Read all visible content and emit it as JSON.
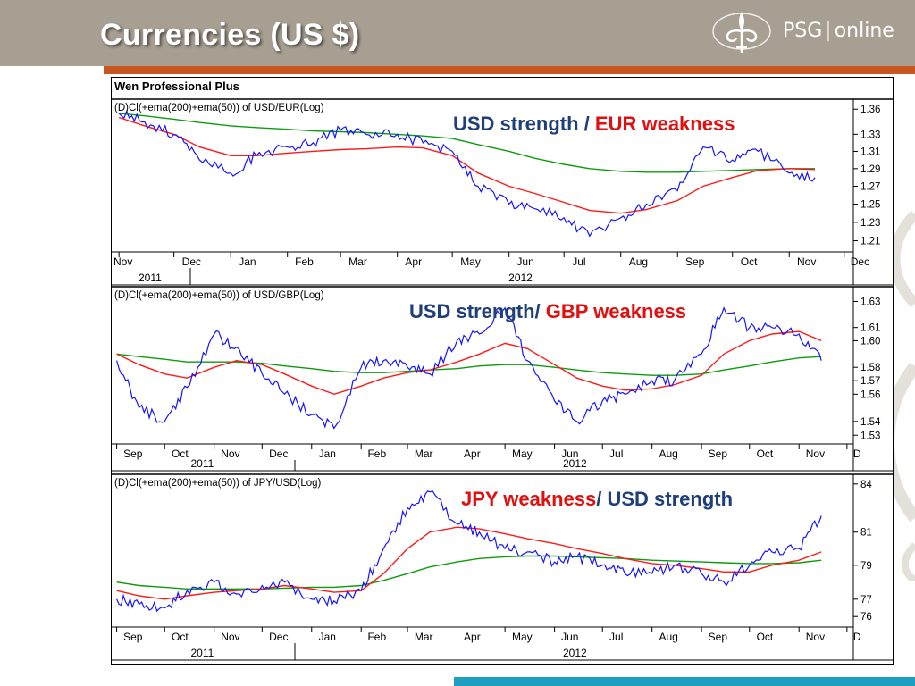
{
  "slide": {
    "title": "Currencies (US $)"
  },
  "logo": {
    "brand": "PSG",
    "suffix": "online"
  },
  "app": {
    "name": "Wen Professional Plus"
  },
  "colors": {
    "price": "#1515ff",
    "ema50": "#ff1a1a",
    "ema200": "#0e9a0e",
    "accent": "#c8561f",
    "header": "#a89f93",
    "highlight_blue": "#1f3f7a",
    "highlight_red": "#e01010"
  },
  "chart_data": [
    {
      "type": "line",
      "title": "(D)Cl(+ema(200)+ema(50)) of USD/EUR(Log)",
      "annotation": {
        "blue_part": "USD strength / ",
        "red_part": "EUR weakness"
      },
      "y_scale": "log",
      "ylim": [
        1.2,
        1.37
      ],
      "y_ticks": [
        "1.36",
        "1.33",
        "1.31",
        "1.29",
        "1.27",
        "1.25",
        "1.23",
        "1.21"
      ],
      "x_ticks": [
        "Nov",
        "Dec",
        "Jan",
        "Feb",
        "Mar",
        "Apr",
        "May",
        "Jun",
        "Jul",
        "Aug",
        "Sep",
        "Oct",
        "Nov",
        "Dec"
      ],
      "year_labels": [
        "2011",
        "2012"
      ],
      "x": [
        "2011-11-01",
        "2011-11-15",
        "2011-12-01",
        "2011-12-15",
        "2012-01-01",
        "2012-01-15",
        "2012-02-01",
        "2012-02-15",
        "2012-03-01",
        "2012-03-15",
        "2012-04-01",
        "2012-04-15",
        "2012-05-01",
        "2012-05-15",
        "2012-06-01",
        "2012-06-15",
        "2012-07-01",
        "2012-07-15",
        "2012-08-01",
        "2012-08-15",
        "2012-09-01",
        "2012-09-15",
        "2012-10-01",
        "2012-10-15",
        "2012-11-01",
        "2012-11-15"
      ],
      "series": [
        {
          "name": "USD/EUR",
          "values": [
            1.355,
            1.345,
            1.33,
            1.3,
            1.285,
            1.305,
            1.315,
            1.32,
            1.335,
            1.33,
            1.33,
            1.32,
            1.31,
            1.27,
            1.25,
            1.245,
            1.235,
            1.215,
            1.235,
            1.25,
            1.265,
            1.315,
            1.3,
            1.31,
            1.285,
            1.28
          ]
        },
        {
          "name": "EMA(50)",
          "values": [
            1.35,
            1.34,
            1.33,
            1.315,
            1.305,
            1.305,
            1.308,
            1.31,
            1.312,
            1.313,
            1.315,
            1.314,
            1.305,
            1.285,
            1.27,
            1.262,
            1.252,
            1.243,
            1.24,
            1.244,
            1.254,
            1.27,
            1.28,
            1.288,
            1.29,
            1.289
          ]
        },
        {
          "name": "EMA(200)",
          "values": [
            1.355,
            1.352,
            1.348,
            1.344,
            1.34,
            1.338,
            1.336,
            1.334,
            1.333,
            1.332,
            1.33,
            1.328,
            1.325,
            1.318,
            1.31,
            1.302,
            1.295,
            1.29,
            1.287,
            1.286,
            1.286,
            1.287,
            1.288,
            1.289,
            1.29,
            1.29
          ]
        }
      ]
    },
    {
      "type": "line",
      "title": "(D)Cl(+ema(200)+ema(50)) of USD/GBP(Log)",
      "annotation": {
        "blue_part": "USD strength/ ",
        "red_part": "GBP weakness"
      },
      "y_scale": "log",
      "ylim": [
        1.525,
        1.64
      ],
      "y_ticks": [
        "1.63",
        "1.61",
        "1.60",
        "1.58",
        "1.57",
        "1.56",
        "1.54",
        "1.53"
      ],
      "x_ticks": [
        "Sep",
        "Oct",
        "Nov",
        "Dec",
        "Jan",
        "Feb",
        "Mar",
        "Apr",
        "May",
        "Jun",
        "Jul",
        "Aug",
        "Sep",
        "Oct",
        "Nov",
        "D"
      ],
      "year_labels": [
        "2011",
        "2012"
      ],
      "x": [
        "2011-09-01",
        "2011-09-15",
        "2011-10-01",
        "2011-10-15",
        "2011-11-01",
        "2011-11-15",
        "2011-12-01",
        "2011-12-15",
        "2012-01-01",
        "2012-01-15",
        "2012-02-01",
        "2012-02-15",
        "2012-03-01",
        "2012-03-15",
        "2012-04-01",
        "2012-04-15",
        "2012-05-01",
        "2012-05-15",
        "2012-06-01",
        "2012-06-15",
        "2012-07-01",
        "2012-07-15",
        "2012-08-01",
        "2012-08-15",
        "2012-09-01",
        "2012-09-15",
        "2012-10-01",
        "2012-10-15",
        "2012-11-01",
        "2012-11-15"
      ],
      "series": [
        {
          "name": "USD/GBP",
          "values": [
            1.585,
            1.55,
            1.54,
            1.565,
            1.605,
            1.595,
            1.575,
            1.56,
            1.545,
            1.535,
            1.58,
            1.585,
            1.58,
            1.575,
            1.6,
            1.605,
            1.625,
            1.585,
            1.555,
            1.54,
            1.555,
            1.56,
            1.57,
            1.57,
            1.59,
            1.625,
            1.61,
            1.61,
            1.605,
            1.585
          ]
        },
        {
          "name": "EMA(50)",
          "values": [
            1.59,
            1.582,
            1.575,
            1.572,
            1.58,
            1.585,
            1.582,
            1.575,
            1.566,
            1.56,
            1.566,
            1.572,
            1.576,
            1.578,
            1.584,
            1.59,
            1.598,
            1.594,
            1.582,
            1.572,
            1.566,
            1.563,
            1.564,
            1.567,
            1.574,
            1.59,
            1.6,
            1.605,
            1.607,
            1.6
          ]
        },
        {
          "name": "EMA(200)",
          "values": [
            1.59,
            1.588,
            1.586,
            1.584,
            1.584,
            1.584,
            1.583,
            1.581,
            1.579,
            1.577,
            1.576,
            1.576,
            1.577,
            1.578,
            1.579,
            1.581,
            1.582,
            1.582,
            1.58,
            1.578,
            1.576,
            1.575,
            1.574,
            1.574,
            1.575,
            1.578,
            1.581,
            1.584,
            1.587,
            1.588
          ]
        }
      ]
    },
    {
      "type": "line",
      "title": "(D)Cl(+ema(200)+ema(50)) of JPY/USD(Log)",
      "annotation": {
        "red_part": "JPY weakness",
        "blue_part": "/ USD strength"
      },
      "y_scale": "log",
      "ylim": [
        75.5,
        84.5
      ],
      "y_ticks": [
        "84",
        "81",
        "79",
        "77",
        "76"
      ],
      "x_ticks": [
        "Sep",
        "Oct",
        "Nov",
        "Dec",
        "Jan",
        "Feb",
        "Mar",
        "Apr",
        "May",
        "Jun",
        "Jul",
        "Aug",
        "Sep",
        "Oct",
        "Nov",
        "D"
      ],
      "year_labels": [
        "2011",
        "2012"
      ],
      "x": [
        "2011-09-01",
        "2011-09-15",
        "2011-10-01",
        "2011-10-15",
        "2011-11-01",
        "2011-11-15",
        "2011-12-01",
        "2011-12-15",
        "2012-01-01",
        "2012-01-15",
        "2012-02-01",
        "2012-02-15",
        "2012-03-01",
        "2012-03-15",
        "2012-04-01",
        "2012-04-15",
        "2012-05-01",
        "2012-05-15",
        "2012-06-01",
        "2012-06-15",
        "2012-07-01",
        "2012-07-15",
        "2012-08-01",
        "2012-08-15",
        "2012-09-01",
        "2012-09-15",
        "2012-10-01",
        "2012-10-15",
        "2012-11-01",
        "2012-11-15"
      ],
      "series": [
        {
          "name": "JPY/USD",
          "values": [
            77.0,
            76.7,
            76.5,
            77.5,
            78.0,
            77.3,
            77.8,
            78.0,
            77.0,
            76.9,
            77.5,
            80.0,
            82.5,
            83.5,
            81.5,
            81.0,
            80.0,
            79.8,
            79.2,
            79.5,
            79.0,
            78.5,
            78.5,
            79.0,
            78.5,
            78.0,
            79.0,
            79.8,
            80.0,
            82.0
          ]
        },
        {
          "name": "EMA(50)",
          "values": [
            77.5,
            77.2,
            77.0,
            77.2,
            77.4,
            77.5,
            77.6,
            77.8,
            77.6,
            77.4,
            77.5,
            78.5,
            80.0,
            81.0,
            81.3,
            81.2,
            80.9,
            80.6,
            80.3,
            80.0,
            79.7,
            79.4,
            79.1,
            79.0,
            78.8,
            78.6,
            78.6,
            79.0,
            79.3,
            79.8
          ]
        },
        {
          "name": "EMA(200)",
          "values": [
            78.0,
            77.8,
            77.7,
            77.6,
            77.6,
            77.6,
            77.6,
            77.65,
            77.7,
            77.7,
            77.8,
            78.1,
            78.5,
            78.9,
            79.2,
            79.4,
            79.5,
            79.55,
            79.55,
            79.5,
            79.45,
            79.4,
            79.3,
            79.25,
            79.2,
            79.15,
            79.1,
            79.1,
            79.15,
            79.3
          ]
        }
      ]
    }
  ]
}
